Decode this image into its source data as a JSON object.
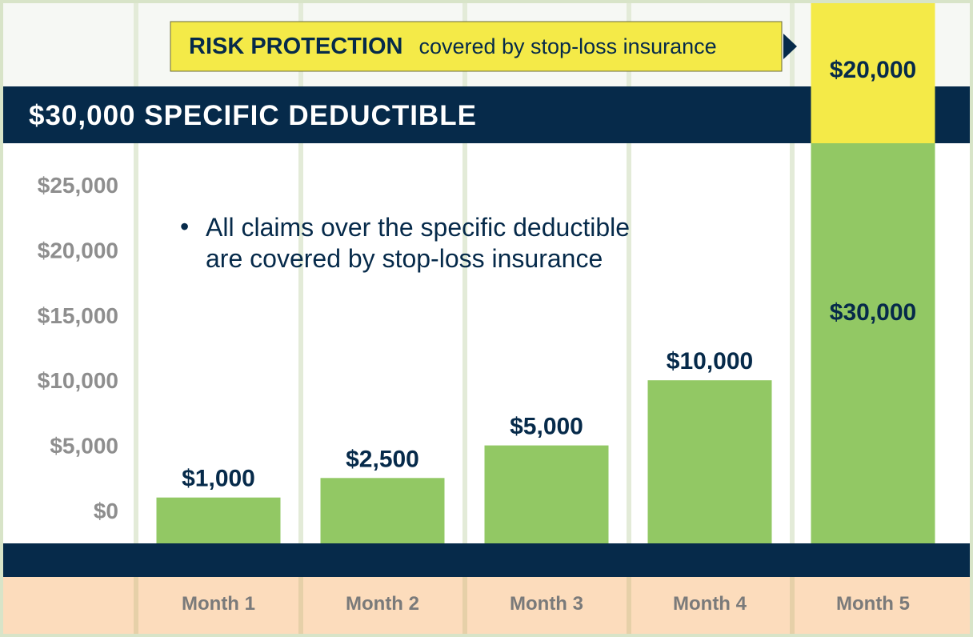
{
  "chart_data": {
    "type": "bar",
    "categories": [
      "Month 1",
      "Month 2",
      "Month 3",
      "Month 4",
      "Month 5"
    ],
    "values": [
      1000,
      2500,
      5000,
      10000,
      30000
    ],
    "value_labels": [
      "$1,000",
      "$2,500",
      "$5,000",
      "$10,000",
      "$30,000"
    ],
    "yticks": [
      0,
      5000,
      10000,
      15000,
      20000,
      25000
    ],
    "ytick_labels": [
      "$0",
      "$5,000",
      "$10,000",
      "$15,000",
      "$20,000",
      "$25,000"
    ],
    "ylim": [
      0,
      30000
    ],
    "stoploss_segment": {
      "category": "Month 5",
      "value": 20000,
      "label": "$20,000"
    },
    "deductible": {
      "value": 30000,
      "label": "$30,000 SPECIFIC DEDUCTIBLE"
    },
    "risk_protection": {
      "title": "RISK PROTECTION",
      "text": "covered by stop-loss insurance"
    },
    "annotation": {
      "bullet": "•",
      "lines": [
        "All claims over the specific deductible",
        "are covered by stop-loss insurance"
      ]
    },
    "colors": {
      "bar": "#92c864",
      "stoploss": "#f4ea48",
      "navy": "#062a4a",
      "month_row": "#fcdcbc",
      "grid": "#e3ebd8",
      "border": "#d8e4c8"
    },
    "grid": true,
    "legend": "none"
  }
}
